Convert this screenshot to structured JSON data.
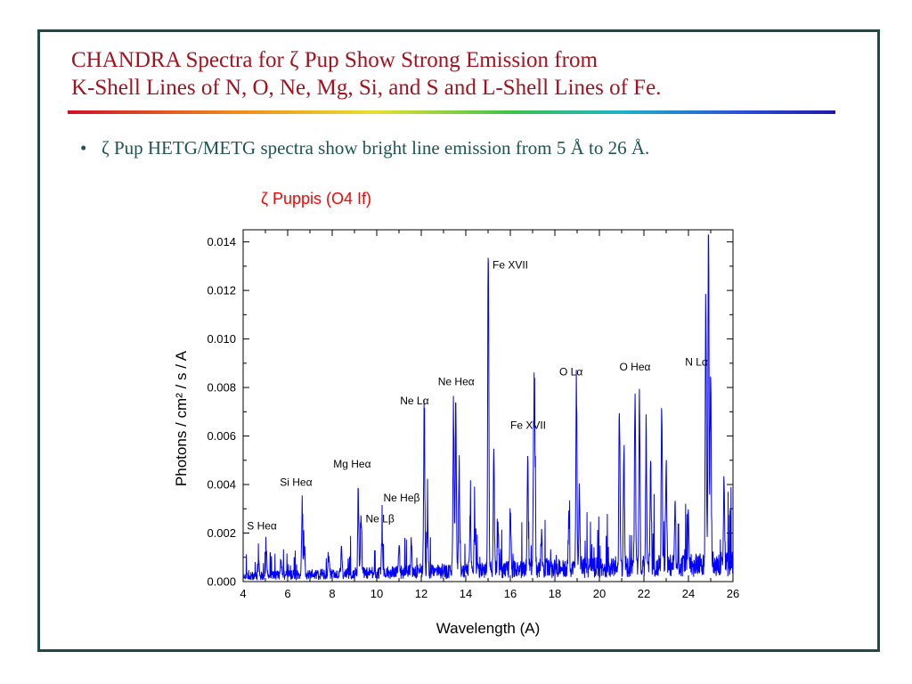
{
  "slide": {
    "title_line1": "CHANDRA Spectra for ζ Pup Show Strong Emission from",
    "title_line2": "K-Shell Lines of N, O, Ne, Mg, Si, and S and L-Shell Lines of Fe.",
    "bullet_symbol": "•",
    "bullet_text": "ζ Pup HETG/METG spectra show bright line emission from 5 Å to 26 Å."
  },
  "colors": {
    "title": "#a3121e",
    "body_text": "#1e5454",
    "frame": "#20494a",
    "spectrum": "#0000ff",
    "chart_title": "#ff0000"
  },
  "chart_data": {
    "type": "line",
    "title": "ζ Puppis (O4 If)",
    "xlabel": "Wavelength (A)",
    "ylabel": "Photons / cm² / s / A",
    "xlim": [
      4,
      26
    ],
    "ylim": [
      0,
      0.0145
    ],
    "xticks": [
      4,
      6,
      8,
      10,
      12,
      14,
      16,
      18,
      20,
      22,
      24,
      26
    ],
    "yticks": [
      0.0,
      0.002,
      0.004,
      0.006,
      0.008,
      0.01,
      0.012,
      0.014
    ],
    "ytick_labels": [
      "0.000",
      "0.002",
      "0.004",
      "0.006",
      "0.008",
      "0.010",
      "0.012",
      "0.014"
    ],
    "grid": false,
    "baseline": 0.0003,
    "lines": [
      {
        "x": 4.7,
        "y": 0.0006
      },
      {
        "x": 5.04,
        "y": 0.0011
      },
      {
        "x": 5.7,
        "y": 0.0008
      },
      {
        "x": 6.65,
        "y": 0.0031
      },
      {
        "x": 6.75,
        "y": 0.0012
      },
      {
        "x": 7.85,
        "y": 0.0007
      },
      {
        "x": 8.42,
        "y": 0.0013
      },
      {
        "x": 9.17,
        "y": 0.0034
      },
      {
        "x": 9.3,
        "y": 0.0026
      },
      {
        "x": 10.24,
        "y": 0.0015
      },
      {
        "x": 11.0,
        "y": 0.0013
      },
      {
        "x": 11.55,
        "y": 0.0014
      },
      {
        "x": 12.13,
        "y": 0.0065
      },
      {
        "x": 12.28,
        "y": 0.0022
      },
      {
        "x": 13.45,
        "y": 0.0069
      },
      {
        "x": 13.55,
        "y": 0.0068
      },
      {
        "x": 13.7,
        "y": 0.0047
      },
      {
        "x": 14.2,
        "y": 0.0025
      },
      {
        "x": 14.4,
        "y": 0.0022
      },
      {
        "x": 15.01,
        "y": 0.014
      },
      {
        "x": 15.26,
        "y": 0.0051
      },
      {
        "x": 15.45,
        "y": 0.002
      },
      {
        "x": 16.0,
        "y": 0.0026
      },
      {
        "x": 16.78,
        "y": 0.0048
      },
      {
        "x": 17.05,
        "y": 0.0055
      },
      {
        "x": 17.1,
        "y": 0.0054
      },
      {
        "x": 17.4,
        "y": 0.0016
      },
      {
        "x": 18.63,
        "y": 0.0025
      },
      {
        "x": 18.97,
        "y": 0.0078
      },
      {
        "x": 19.1,
        "y": 0.0031
      },
      {
        "x": 20.9,
        "y": 0.007
      },
      {
        "x": 21.1,
        "y": 0.005
      },
      {
        "x": 21.6,
        "y": 0.0074
      },
      {
        "x": 21.8,
        "y": 0.007
      },
      {
        "x": 22.1,
        "y": 0.0059
      },
      {
        "x": 22.3,
        "y": 0.0044
      },
      {
        "x": 22.8,
        "y": 0.0065
      },
      {
        "x": 23.0,
        "y": 0.0043
      },
      {
        "x": 23.4,
        "y": 0.0025
      },
      {
        "x": 24.0,
        "y": 0.0024
      },
      {
        "x": 24.78,
        "y": 0.0115
      },
      {
        "x": 24.9,
        "y": 0.0136
      },
      {
        "x": 25.0,
        "y": 0.008
      },
      {
        "x": 25.6,
        "y": 0.0032
      }
    ],
    "annotations": [
      {
        "text": "S Heα",
        "x": 4.17,
        "y": 0.00215
      },
      {
        "text": "Si Heα",
        "x": 5.65,
        "y": 0.00395
      },
      {
        "text": "Mg Heα",
        "x": 8.05,
        "y": 0.0047
      },
      {
        "text": "Ne Heβ",
        "x": 10.3,
        "y": 0.0033
      },
      {
        "text": "Ne Lβ",
        "x": 9.5,
        "y": 0.00245
      },
      {
        "text": "Ne Lα",
        "x": 11.05,
        "y": 0.0073
      },
      {
        "text": "Ne Heα",
        "x": 12.75,
        "y": 0.0081
      },
      {
        "text": "Fe XVII",
        "x": 15.2,
        "y": 0.0129
      },
      {
        "text": "Fe XVII",
        "x": 16.0,
        "y": 0.0063
      },
      {
        "text": "O Lα",
        "x": 18.2,
        "y": 0.0085
      },
      {
        "text": "O Heα",
        "x": 20.9,
        "y": 0.0087
      },
      {
        "text": "N Lα",
        "x": 23.85,
        "y": 0.0089
      }
    ]
  }
}
